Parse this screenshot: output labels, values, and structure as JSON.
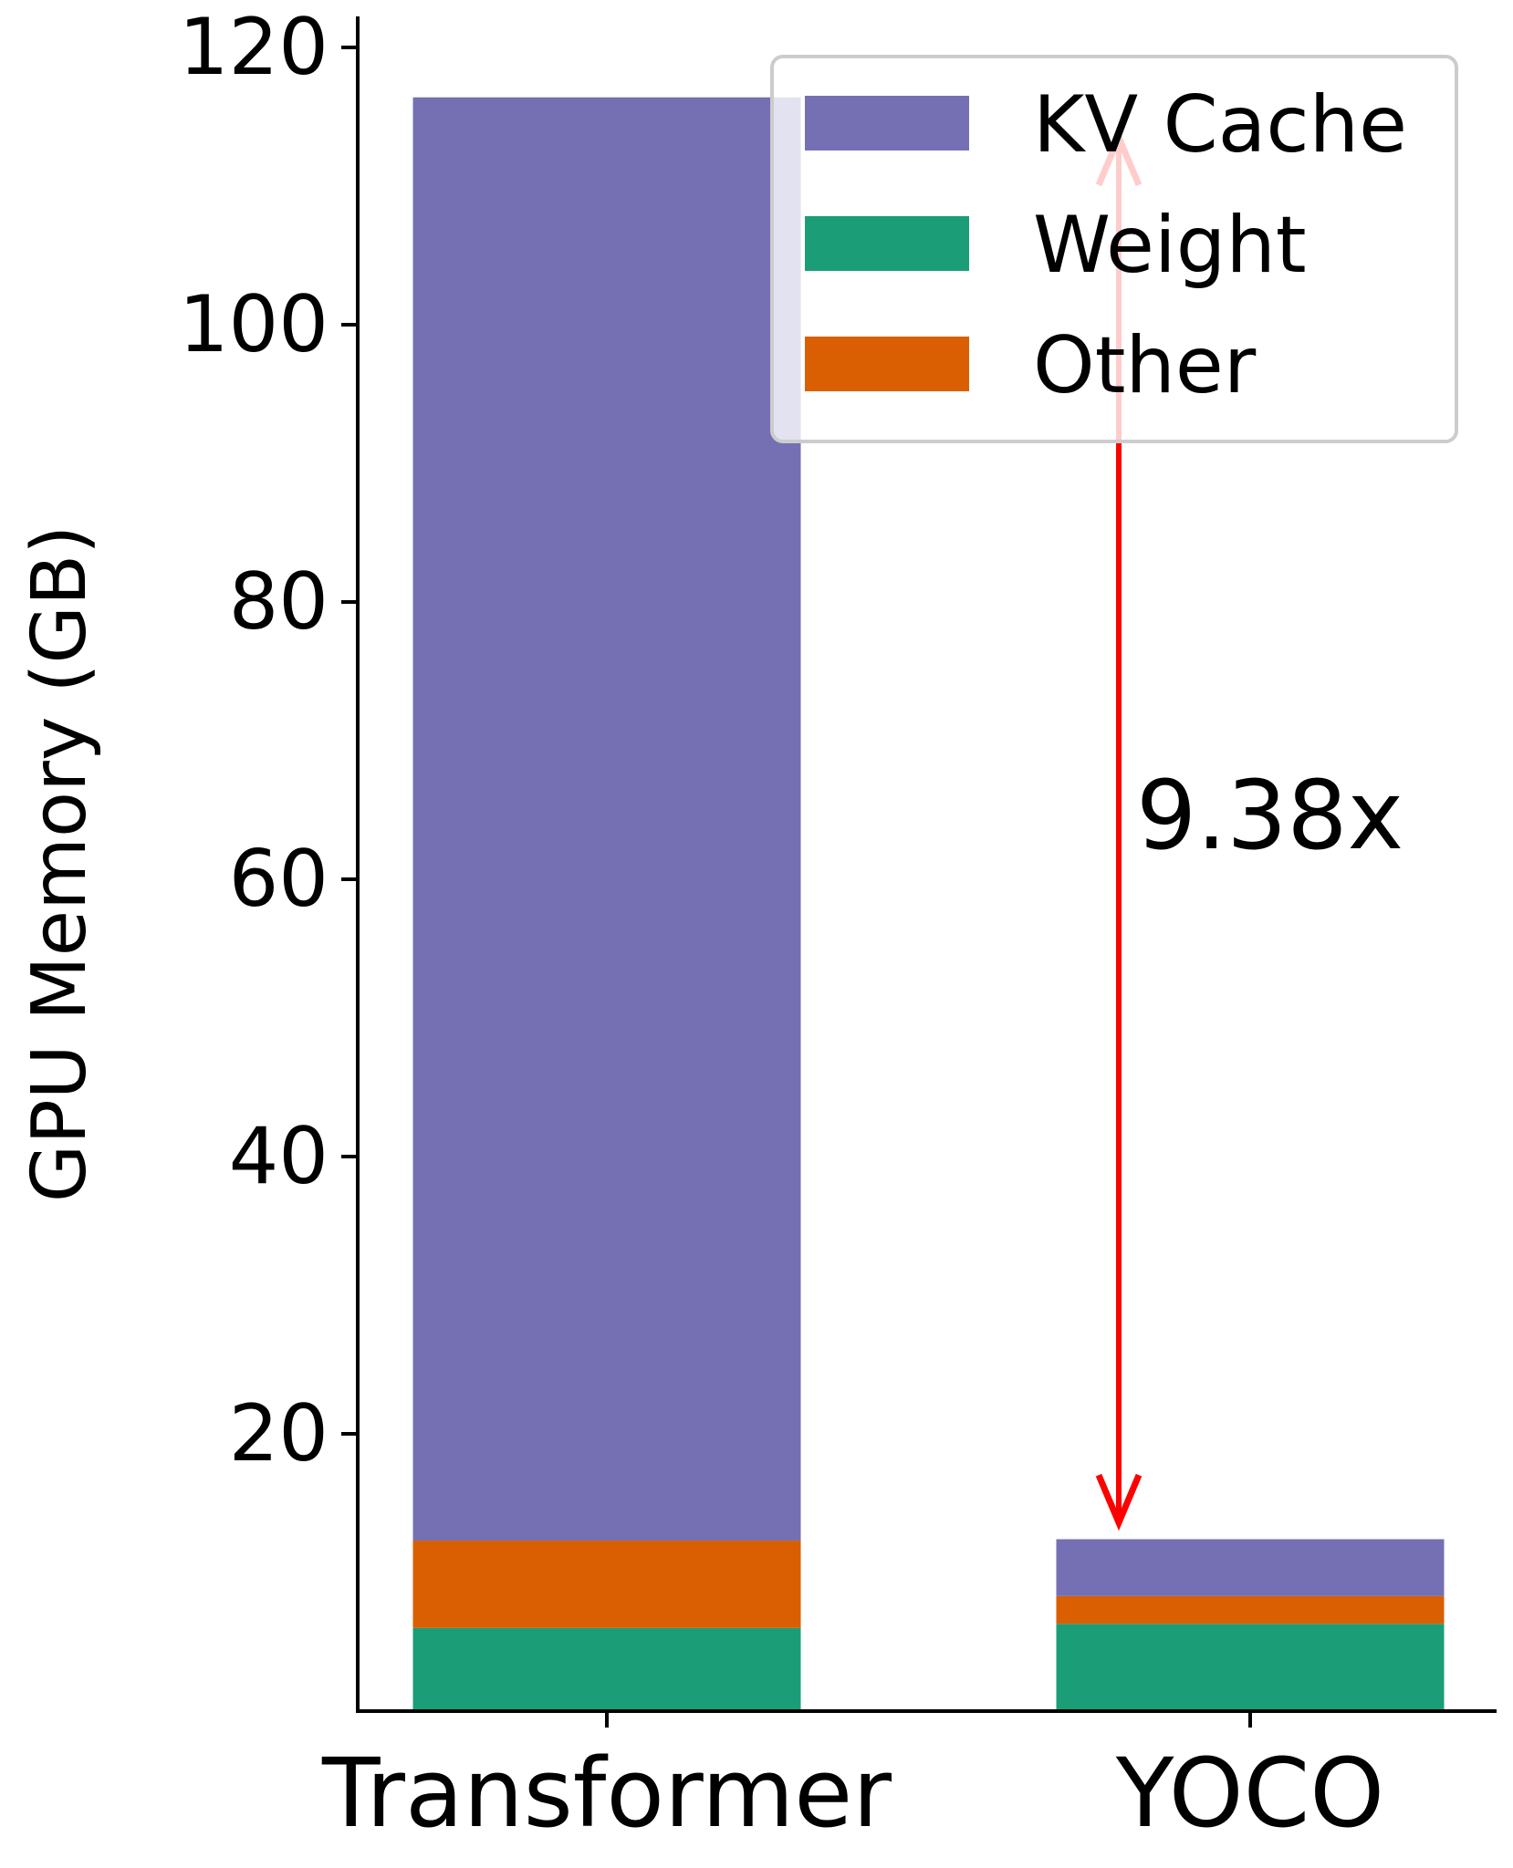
{
  "chart_data": {
    "type": "bar",
    "stacked": true,
    "categories": [
      "Transformer",
      "YOCO"
    ],
    "series": [
      {
        "name": "Weight",
        "color": "#1b9e77",
        "values": [
          6.0,
          6.3
        ]
      },
      {
        "name": "Other",
        "color": "#d95f02",
        "values": [
          6.3,
          2.0
        ]
      },
      {
        "name": "KV Cache",
        "color": "#7570b3",
        "values": [
          104.1,
          4.1
        ]
      }
    ],
    "legend_order": [
      "KV Cache",
      "Weight",
      "Other"
    ],
    "title": "",
    "xlabel": "",
    "ylabel": "GPU Memory (GB)",
    "ylim": [
      0,
      121
    ],
    "yticks": [
      20,
      40,
      60,
      80,
      100,
      120
    ],
    "grid": false,
    "legend_position": "top-right",
    "annotation": {
      "text": "9.38x",
      "color": "#ff0000",
      "arrow_from_value": 113.5,
      "arrow_to_value": 13.6,
      "category": "YOCO"
    }
  }
}
